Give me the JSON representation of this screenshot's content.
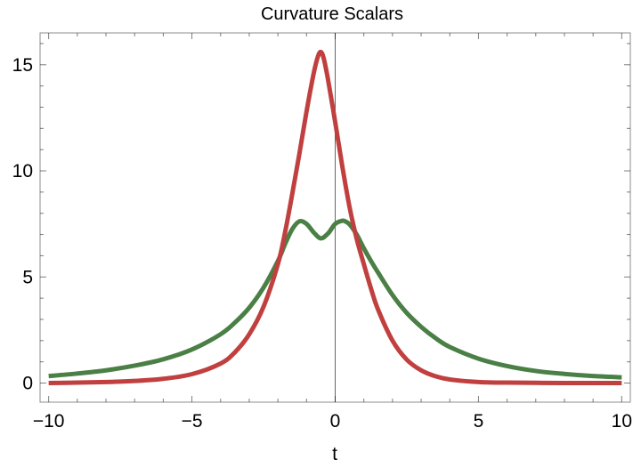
{
  "chart_data": {
    "type": "line",
    "title": "Curvature Scalars",
    "xlabel": "t",
    "ylabel": "",
    "xlim": [
      -10.3,
      10.3
    ],
    "ylim": [
      -0.9,
      16.5
    ],
    "xticks": [
      -10,
      -5,
      0,
      5,
      10
    ],
    "xtick_labels": [
      "−10",
      "−5",
      "0",
      "5",
      "10"
    ],
    "yticks": [
      0,
      5,
      10,
      15
    ],
    "ytick_labels": [
      "0",
      "5",
      "10",
      "15"
    ],
    "grid": false,
    "legend": "none",
    "series": [
      {
        "color": "#4a7f45",
        "x": [
          -10,
          -9,
          -8,
          -7,
          -6,
          -5,
          -4,
          -3.5,
          -3,
          -2.5,
          -2,
          -1.75,
          -1.5,
          -1.25,
          -1,
          -0.75,
          -0.5,
          -0.25,
          0,
          0.25,
          0.35,
          0.5,
          0.75,
          1,
          1.25,
          1.5,
          2,
          2.5,
          3,
          3.5,
          4,
          5,
          6,
          7,
          8,
          9,
          10
        ],
        "y": [
          0.33,
          0.45,
          0.6,
          0.82,
          1.12,
          1.58,
          2.3,
          2.85,
          3.55,
          4.5,
          5.75,
          6.55,
          7.25,
          7.62,
          7.5,
          7.1,
          6.82,
          7.05,
          7.5,
          7.65,
          7.62,
          7.48,
          7.0,
          6.35,
          5.75,
          5.2,
          4.15,
          3.3,
          2.65,
          2.12,
          1.7,
          1.15,
          0.8,
          0.57,
          0.43,
          0.33,
          0.27
        ]
      },
      {
        "color": "#c0403f",
        "x": [
          -10,
          -9,
          -8,
          -7,
          -6,
          -5,
          -4,
          -3.5,
          -3,
          -2.5,
          -2,
          -1.75,
          -1.5,
          -1.25,
          -1,
          -0.75,
          -0.6,
          -0.5,
          -0.4,
          -0.25,
          0,
          0.25,
          0.5,
          0.75,
          1,
          1.25,
          1.5,
          2,
          2.5,
          3,
          3.5,
          4,
          5,
          6,
          7,
          8,
          9,
          10
        ],
        "y": [
          0.0,
          0.02,
          0.05,
          0.1,
          0.2,
          0.42,
          0.92,
          1.45,
          2.3,
          3.6,
          5.6,
          7.1,
          8.9,
          10.8,
          12.8,
          14.6,
          15.4,
          15.6,
          15.3,
          14.3,
          12.3,
          10.2,
          8.3,
          6.8,
          5.6,
          4.45,
          3.45,
          2.0,
          1.1,
          0.6,
          0.32,
          0.17,
          0.05,
          0.02,
          0.01,
          0.0,
          0.0,
          0.0
        ]
      }
    ]
  }
}
